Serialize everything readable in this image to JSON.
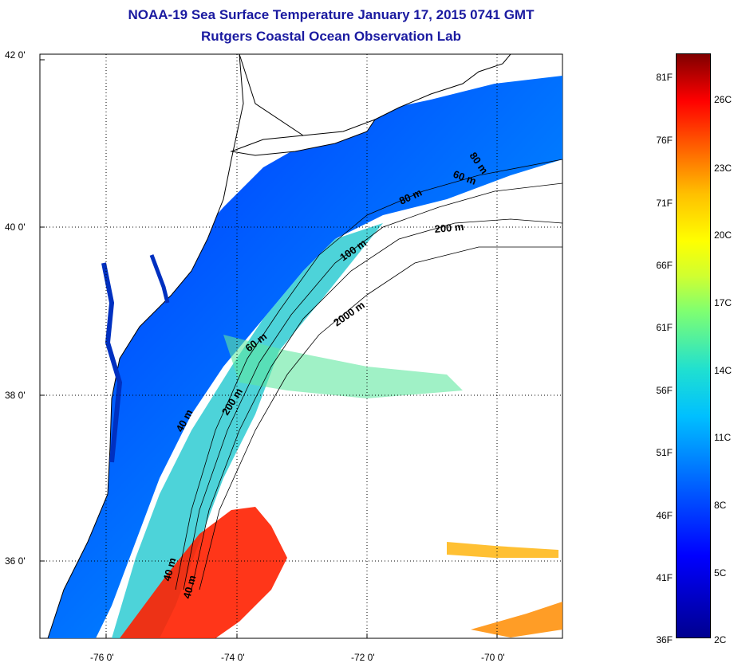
{
  "title": {
    "line1": "NOAA-19 Sea Surface Temperature January 17, 2015 0741 GMT",
    "line2": "Rutgers Coastal Ocean Observation Lab"
  },
  "axes": {
    "y_labels": [
      "42 0'",
      "40 0'",
      "38 0'",
      "36 0'"
    ],
    "x_labels": [
      "-76 0'",
      "-74 0'",
      "-72 0'",
      "-70 0'"
    ]
  },
  "colorbar": {
    "fahrenheit": [
      "81F",
      "76F",
      "71F",
      "66F",
      "61F",
      "56F",
      "51F",
      "46F",
      "41F",
      "36F"
    ],
    "celsius": [
      "26C",
      "23C",
      "20C",
      "17C",
      "14C",
      "11C",
      "8C",
      "5C",
      "2C"
    ],
    "colors": [
      "#00008f",
      "#0000ff",
      "#00c0ff",
      "#80ff70",
      "#ffff00",
      "#ff6000",
      "#800000"
    ]
  },
  "isobaths": [
    "80 m",
    "60 m",
    "80 m",
    "200 m",
    "100 m",
    "2000 m",
    "60 m",
    "40 m",
    "200 m",
    "40 m",
    "40 m"
  ]
}
